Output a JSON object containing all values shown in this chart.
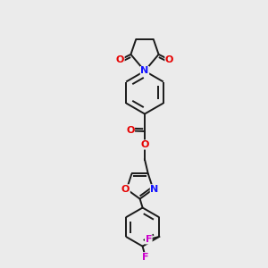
{
  "background_color": "#ebebeb",
  "bond_color": "#1a1a1a",
  "atom_colors": {
    "O": "#e60000",
    "N": "#1414ff",
    "F": "#cc00cc",
    "C": "#1a1a1a"
  },
  "lw": 1.4,
  "fs": 8.0,
  "figsize": [
    3.0,
    3.0
  ],
  "dpi": 100
}
